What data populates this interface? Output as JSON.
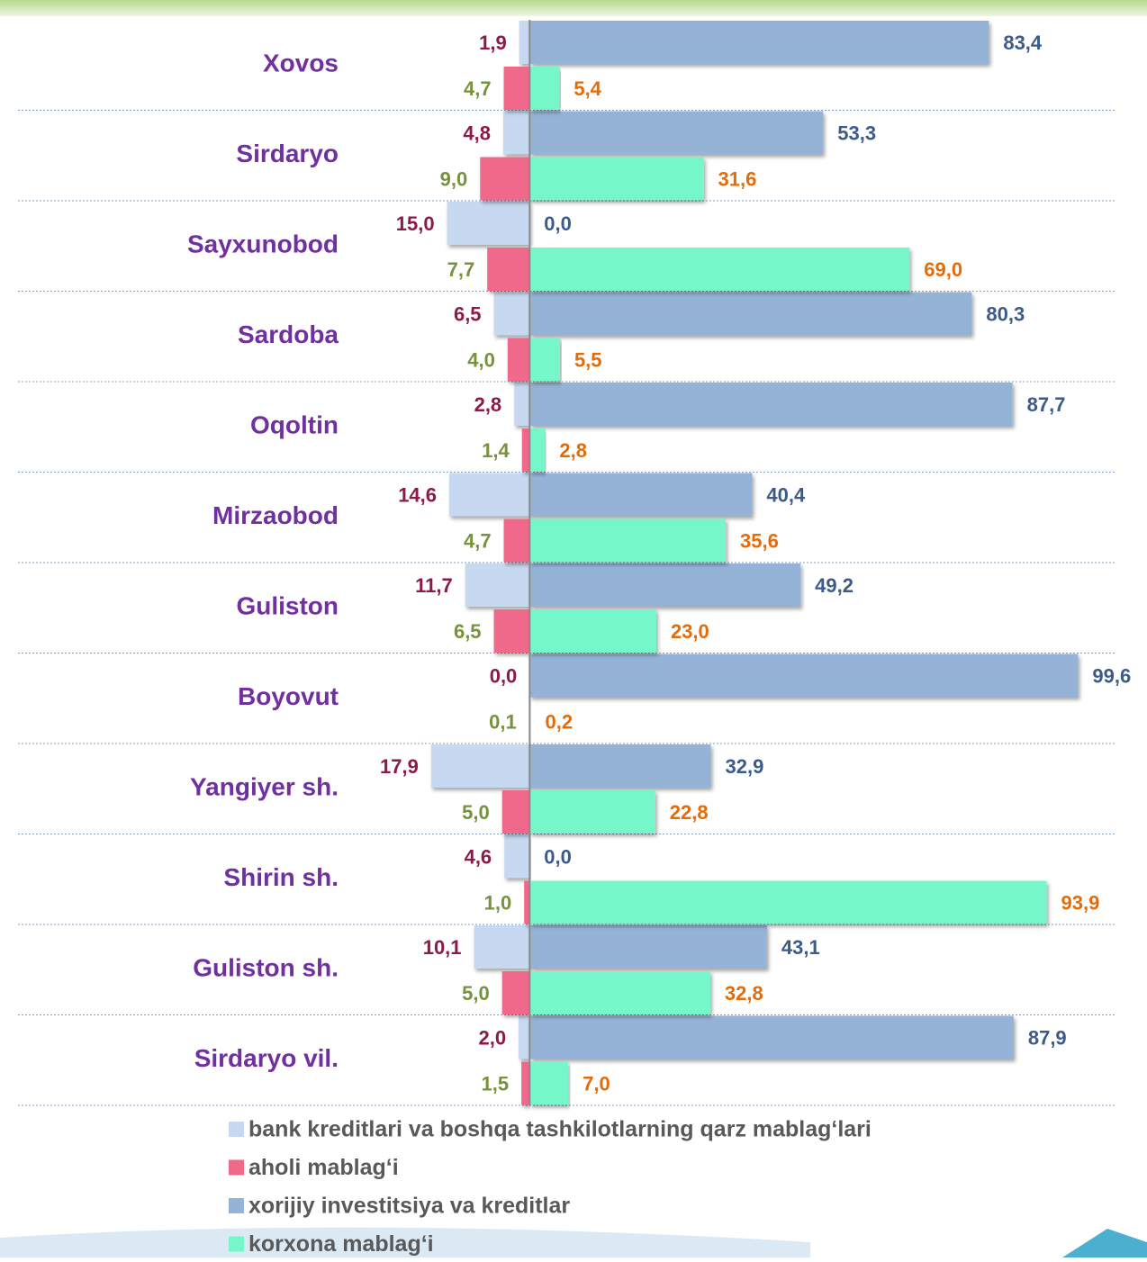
{
  "chart_data": {
    "type": "diverging_bar",
    "categories": [
      "Xovos",
      "Sirdaryo",
      "Sayxunobod",
      "Sardoba",
      "Oqoltin",
      "Mirzaobod",
      "Guliston",
      "Boyovut",
      "Yangiyer sh.",
      "Shirin sh.",
      "Guliston sh.",
      "Sirdaryo vil."
    ],
    "xlim": [
      -20,
      110
    ],
    "series": [
      {
        "name": "bank kreditlari va boshqa tashkilotlarning qarz mablag‘lari",
        "color": "#c6d9f1",
        "label_color": "#8b1a4a",
        "side": "left",
        "row": "top",
        "values": [
          1.9,
          4.8,
          15.0,
          6.5,
          2.8,
          14.6,
          11.7,
          0.0,
          17.9,
          4.6,
          10.1,
          2.0
        ],
        "value_labels": [
          "1,9",
          "4,8",
          "15,0",
          "6,5",
          "2,8",
          "14,6",
          "11,7",
          "0,0",
          "17,9",
          "4,6",
          "10,1",
          "2,0"
        ]
      },
      {
        "name": "aholi mablag‘i",
        "color": "#f0698a",
        "label_color": "#76923c",
        "side": "left",
        "row": "bottom",
        "values": [
          4.7,
          9.0,
          7.7,
          4.0,
          1.4,
          4.7,
          6.5,
          0.1,
          5.0,
          1.0,
          5.0,
          1.5
        ],
        "value_labels": [
          "4,7",
          "9,0",
          "7,7",
          "4,0",
          "1,4",
          "4,7",
          "6,5",
          "0,1",
          "5,0",
          "1,0",
          "5,0",
          "1,5"
        ]
      },
      {
        "name": "xorijiy investitsiya va kreditlar",
        "color": "#95b3d7",
        "label_color": "#3c5a8a",
        "side": "right",
        "row": "top",
        "values": [
          83.4,
          53.3,
          0.0,
          80.3,
          87.7,
          40.4,
          49.2,
          99.6,
          32.9,
          0.0,
          43.1,
          87.9
        ],
        "value_labels": [
          "83,4",
          "53,3",
          "0,0",
          "80,3",
          "87,7",
          "40,4",
          "49,2",
          "99,6",
          "32,9",
          "0,0",
          "43,1",
          "87,9"
        ]
      },
      {
        "name": "korxona mablag‘i",
        "color": "#75f7c9",
        "label_color": "#e36c09",
        "side": "right",
        "row": "bottom",
        "values": [
          5.4,
          31.6,
          69.0,
          5.5,
          2.8,
          35.6,
          23.0,
          0.2,
          22.8,
          93.9,
          32.8,
          7.0
        ],
        "value_labels": [
          "5,4",
          "31,6",
          "69,0",
          "5,5",
          "2,8",
          "35,6",
          "23,0",
          "0,2",
          "22,8",
          "93,9",
          "32,8",
          "7,0"
        ]
      }
    ]
  }
}
